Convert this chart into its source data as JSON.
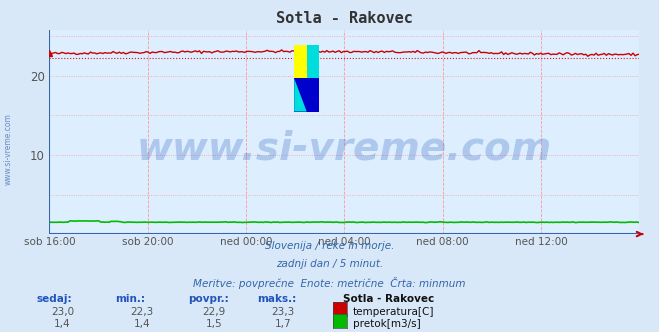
{
  "title": "Sotla - Rakovec",
  "bg_color": "#d8e8f8",
  "plot_bg_color": "#ddeeff",
  "grid_color_v": "#ff9999",
  "grid_color_h": "#ff9999",
  "x_labels": [
    "sob 16:00",
    "sob 20:00",
    "ned 00:00",
    "ned 04:00",
    "ned 08:00",
    "ned 12:00"
  ],
  "ylim": [
    0,
    25.83
  ],
  "yticks": [
    10,
    20
  ],
  "temp_min": 22.3,
  "temp_max": 23.3,
  "temp_color": "#cc0000",
  "flow_min": 1.4,
  "flow_max": 1.7,
  "flow_color": "#00bb00",
  "watermark_text": "www.si-vreme.com",
  "watermark_color": "#3366bb",
  "watermark_alpha": 0.28,
  "watermark_fontsize": 28,
  "subtitle1": "Slovenija / reke in morje.",
  "subtitle2": "zadnji dan / 5 minut.",
  "subtitle3": "Meritve: povprečne  Enote: metrične  Črta: minmum",
  "subtitle_color": "#3366aa",
  "legend_title": "Sotla - Rakovec",
  "legend_temp_label": "temperatura[C]",
  "legend_flow_label": "pretok[m3/s]",
  "table_headers": [
    "sedaj:",
    "min.:",
    "povpr.:",
    "maks.:"
  ],
  "table_temp": [
    "23,0",
    "22,3",
    "22,9",
    "23,3"
  ],
  "table_flow": [
    "1,4",
    "1,4",
    "1,5",
    "1,7"
  ],
  "table_header_color": "#2255bb",
  "table_val_color": "#555555",
  "n_points": 288,
  "side_label": "www.si-vreme.com",
  "side_label_color": "#3366aa",
  "border_color": "#3366aa",
  "arrow_color": "#cc0000"
}
